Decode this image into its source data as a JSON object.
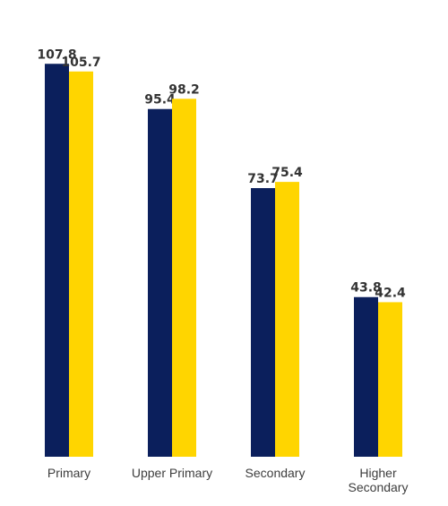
{
  "chart_data": {
    "type": "bar",
    "categories": [
      "Primary",
      "Upper Primary",
      "Secondary",
      "Higher Secondary"
    ],
    "category_lines": [
      [
        "Primary"
      ],
      [
        "Upper Primary"
      ],
      [
        "Secondary"
      ],
      [
        "Higher",
        "Secondary"
      ]
    ],
    "series": [
      {
        "values": [
          107.8,
          95.4,
          73.7,
          43.8
        ],
        "color": "#0b1f5c"
      },
      {
        "values": [
          105.7,
          98.2,
          75.4,
          42.4
        ],
        "color": "#ffd500"
      }
    ],
    "value_labels": [
      [
        "107.8",
        "95.4",
        "73.7",
        "43.8"
      ],
      [
        "105.7",
        "98.2",
        "75.4",
        "42.4"
      ]
    ],
    "ylim": [
      0,
      120
    ],
    "grid": false,
    "title": "",
    "xlabel": "",
    "ylabel": ""
  }
}
